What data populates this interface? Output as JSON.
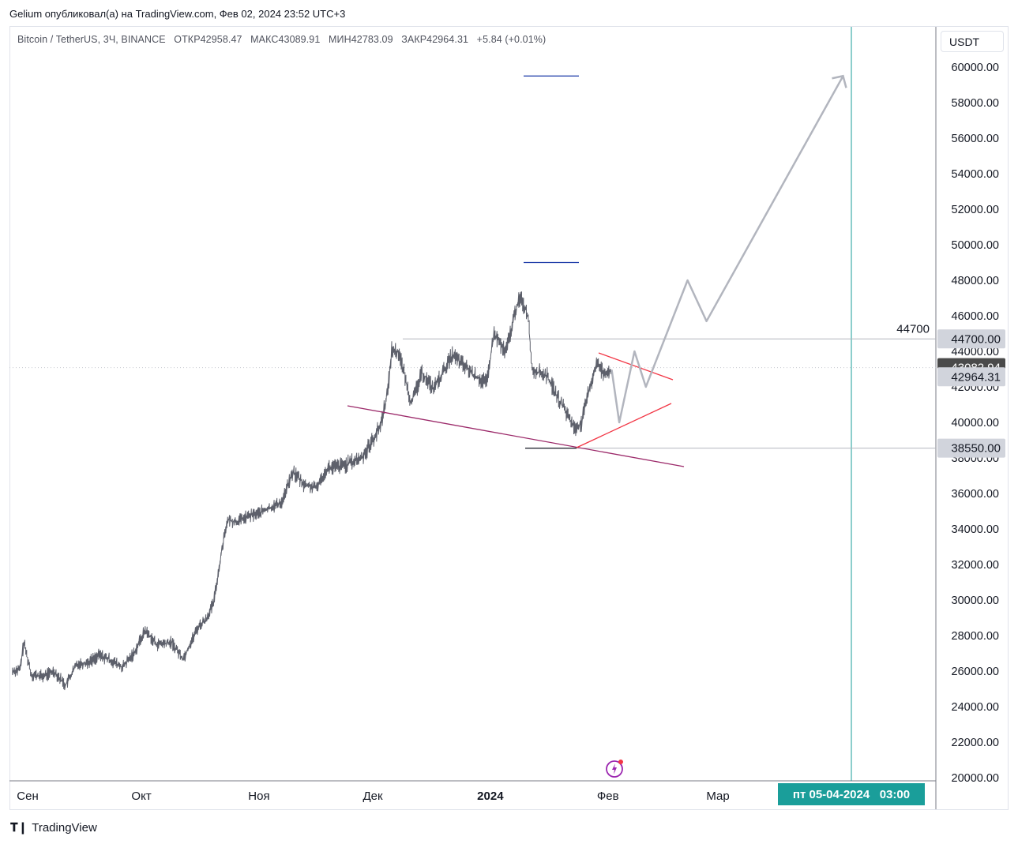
{
  "header": {
    "publish_line": "Gelium опубликовал(а) на TradingView.com, Фев 02, 2024 23:52 UTC+3"
  },
  "legend": {
    "symbol": "Bitcoin / TetherUS, 3Ч, BINANCE",
    "open": "ОТКР42958.47",
    "high": "МАКС43089.91",
    "low": "МИН42783.09",
    "close": "ЗАКР42964.31",
    "change": "+5.84 (+0.01%)"
  },
  "currency_button": "USDT",
  "footer": {
    "brand": "TradingView"
  },
  "crosshair_date_label": "пт 05-04-2024   03:00",
  "colors": {
    "price_line": "#5d606b",
    "resistance": "#b2b5be",
    "triangle": "#f23645",
    "support_trend": "#9c2a6a",
    "target_lines": "#1e3ba8",
    "projection": "#b2b5be",
    "crosshair": "#1a9e9a",
    "label_bg": "#d1d4dc",
    "label_dark": "#4a4a4a"
  },
  "chart_data": {
    "type": "line",
    "title": "Bitcoin / TetherUS, 3Ч, BINANCE",
    "xlabel": "",
    "ylabel": "",
    "ylim": [
      20000,
      61000
    ],
    "y_ticks": [
      20000,
      22000,
      24000,
      26000,
      28000,
      30000,
      32000,
      34000,
      36000,
      38000,
      40000,
      42000,
      44000,
      46000,
      48000,
      50000,
      52000,
      54000,
      56000,
      58000,
      60000
    ],
    "y_tick_labels": [
      "20000.00",
      "22000.00",
      "24000.00",
      "26000.00",
      "28000.00",
      "30000.00",
      "32000.00",
      "34000.00",
      "36000.00",
      "38000.00",
      "40000.00",
      "42000.00",
      "44000.00",
      "46000.00",
      "48000.00",
      "50000.00",
      "52000.00",
      "54000.00",
      "56000.00",
      "58000.00",
      "60000.00"
    ],
    "x_tick_labels": [
      {
        "label": "Сен",
        "date": "2023-09-01"
      },
      {
        "label": "Окт",
        "date": "2023-10-01"
      },
      {
        "label": "Ноя",
        "date": "2023-11-01"
      },
      {
        "label": "Дек",
        "date": "2023-12-01"
      },
      {
        "label": "2024",
        "date": "2024-01-01"
      },
      {
        "label": "Фев",
        "date": "2024-02-01"
      },
      {
        "label": "Мар",
        "date": "2024-03-01"
      }
    ],
    "grid": false,
    "series": [
      {
        "x": [
          "2023-08-28",
          "2023-08-30",
          "2023-08-31",
          "2023-09-02",
          "2023-09-05",
          "2023-09-08",
          "2023-09-11",
          "2023-09-14",
          "2023-09-17",
          "2023-09-20",
          "2023-09-23",
          "2023-09-26",
          "2023-09-29",
          "2023-10-02",
          "2023-10-05",
          "2023-10-09",
          "2023-10-12",
          "2023-10-16",
          "2023-10-18",
          "2023-10-20",
          "2023-10-23",
          "2023-10-24",
          "2023-10-26",
          "2023-10-29",
          "2023-11-01",
          "2023-11-04",
          "2023-11-07",
          "2023-11-09",
          "2023-11-10",
          "2023-11-13",
          "2023-11-16",
          "2023-11-19",
          "2023-11-22",
          "2023-11-25",
          "2023-11-28",
          "2023-12-01",
          "2023-12-03",
          "2023-12-05",
          "2023-12-06",
          "2023-12-08",
          "2023-12-11",
          "2023-12-12",
          "2023-12-14",
          "2023-12-17",
          "2023-12-19",
          "2023-12-22",
          "2023-12-25",
          "2023-12-28",
          "2023-12-31",
          "2024-01-02",
          "2024-01-05",
          "2024-01-08",
          "2024-01-09",
          "2024-01-11",
          "2024-01-12",
          "2024-01-14",
          "2024-01-16",
          "2024-01-19",
          "2024-01-22",
          "2024-01-23",
          "2024-01-25",
          "2024-01-27",
          "2024-01-29",
          "2024-01-31",
          "2024-02-02"
        ],
        "values": [
          26000,
          26100,
          27600,
          25800,
          25700,
          26000,
          25200,
          26400,
          26500,
          26900,
          26600,
          26200,
          27000,
          28300,
          27500,
          27600,
          26700,
          28500,
          28900,
          29800,
          33900,
          34500,
          34400,
          34700,
          34900,
          35200,
          35500,
          36700,
          37200,
          36500,
          36300,
          37400,
          37500,
          37700,
          38000,
          39000,
          39800,
          41800,
          44100,
          43900,
          41200,
          41500,
          42800,
          41900,
          42600,
          43800,
          43200,
          42600,
          42200,
          45000,
          43900,
          46600,
          47000,
          46000,
          43000,
          42800,
          42600,
          41300,
          40200,
          39700,
          39900,
          41800,
          43300,
          42800,
          42964
        ]
      }
    ],
    "annotations": {
      "resistance_level": {
        "value": 44700,
        "label": "44700",
        "axis_label": "44700.00"
      },
      "support_level": {
        "value": 38550,
        "axis_label": "38550.00"
      },
      "price_labels": [
        "43082.94",
        "42964.31"
      ],
      "upper_targets": [
        49000,
        59500
      ],
      "projection_path": [
        {
          "date": "2024-02-02",
          "value": 42964
        },
        {
          "date": "2024-02-04",
          "value": 40000
        },
        {
          "date": "2024-02-08",
          "value": 44000
        },
        {
          "date": "2024-02-11",
          "value": 42000
        },
        {
          "date": "2024-02-22",
          "value": 48000
        },
        {
          "date": "2024-02-27",
          "value": 45700
        },
        {
          "date": "2024-04-03",
          "value": 59500
        }
      ]
    }
  }
}
